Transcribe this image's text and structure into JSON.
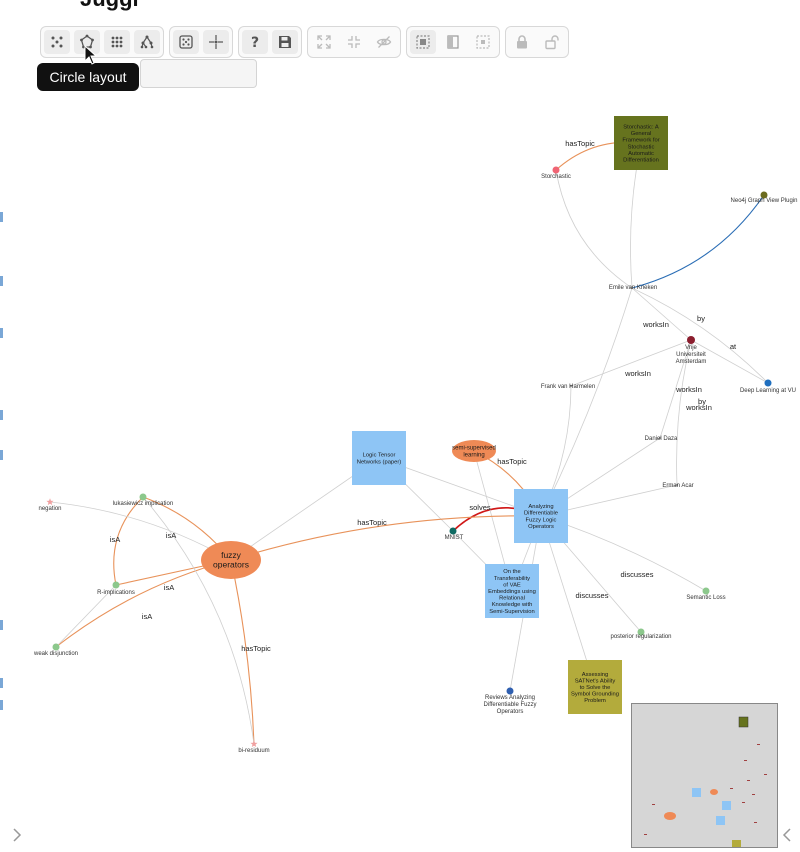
{
  "title": "Juggl",
  "toolbar": {
    "groups": [
      [
        "fdgd-layout-icon",
        "circle-layout-icon",
        "grid-layout-icon",
        "hierarchy-layout-icon"
      ],
      [
        "random-layout-icon",
        "fit-icon"
      ],
      [
        "help-icon",
        "save-icon"
      ],
      [
        "expand-icon",
        "collapse-icon",
        "hide-icon"
      ],
      [
        "select-all-icon",
        "invert-icon",
        "select-neighbors-icon"
      ],
      [
        "lock-icon",
        "unlock-icon"
      ]
    ],
    "tooltip": "Circle layout"
  },
  "graph": {
    "nodes": [
      {
        "id": "storchastic_paper",
        "label": "Storchastic: A General Framework for Stochastic Automatic Differentiation",
        "shape": "rect",
        "color": "#66731e",
        "size": 54
      },
      {
        "id": "storchastic",
        "label": "Storchastic",
        "shape": "dot",
        "color": "#f06474"
      },
      {
        "id": "neo4j",
        "label": "Neo4j Graph View Plugin",
        "shape": "dot",
        "color": "#6b6b1e"
      },
      {
        "id": "emile",
        "label": "Emile van Krieken",
        "shape": "tiny",
        "color": "#999999"
      },
      {
        "id": "vu",
        "label": "Vrije Universiteit Amsterdam",
        "shape": "dot",
        "color": "#8b1e2e"
      },
      {
        "id": "dlvu",
        "label": "Deep Learning at VU",
        "shape": "dot",
        "color": "#1f6fbf"
      },
      {
        "id": "frank",
        "label": "Frank van Harmelen",
        "shape": "tiny",
        "color": "#999999"
      },
      {
        "id": "daniel",
        "label": "Daniel Daza",
        "shape": "tiny",
        "color": "#999999"
      },
      {
        "id": "erman",
        "label": "Erman Acar",
        "shape": "tiny",
        "color": "#999999"
      },
      {
        "id": "ltn",
        "label": "Logic Tensor Networks (paper)",
        "shape": "rect",
        "color": "#8ec5f5",
        "size": 54
      },
      {
        "id": "semi",
        "label": "semi-supervised learning",
        "shape": "ellipse",
        "color": "#ef8a56"
      },
      {
        "id": "adflo",
        "label": "Analyzing Differentiable Fuzzy Logic Operators",
        "shape": "rect",
        "color": "#8ec5f5",
        "size": 54
      },
      {
        "id": "mnist",
        "label": "MNIST",
        "shape": "dot",
        "color": "#0f6b63"
      },
      {
        "id": "vae",
        "label": "On the Transferability of VAE Embeddings using Relational Knowledge with Semi-Supervision",
        "shape": "rect",
        "color": "#8ec5f5",
        "size": 54
      },
      {
        "id": "semloss",
        "label": "Semantic Loss",
        "shape": "dot",
        "color": "#8cc88c"
      },
      {
        "id": "postreg",
        "label": "posterior regularization",
        "shape": "dot",
        "color": "#8cc88c"
      },
      {
        "id": "satnet",
        "label": "Assessing SATNet's Ability to Solve the Symbol Grounding Problem",
        "shape": "rect",
        "color": "#b3ab3c",
        "size": 54
      },
      {
        "id": "reviews",
        "label": "Reviews Analyzing Differentiable Fuzzy Operators",
        "shape": "dot",
        "color": "#2f5fb0"
      },
      {
        "id": "fuzzy",
        "label": "fuzzy operators",
        "shape": "ellipse-big",
        "color": "#ef8a56"
      },
      {
        "id": "negation",
        "label": "negation",
        "shape": "star",
        "color": "#f0a0a0"
      },
      {
        "id": "lukasiewicz",
        "label": "lukasiewicz implication",
        "shape": "dot",
        "color": "#8cc88c"
      },
      {
        "id": "rimpl",
        "label": "R-implications",
        "shape": "dot",
        "color": "#8cc88c"
      },
      {
        "id": "weakdis",
        "label": "weak disjunction",
        "shape": "dot",
        "color": "#8cc88c"
      },
      {
        "id": "biresiduum",
        "label": "bi-residuum",
        "shape": "star",
        "color": "#f0a0a0"
      }
    ],
    "edge_labels": [
      {
        "id": "hastopic_storchastic",
        "text": "hasTopic"
      },
      {
        "id": "worksin_1",
        "text": "worksIn"
      },
      {
        "id": "by_1",
        "text": "by"
      },
      {
        "id": "at_1",
        "text": "at"
      },
      {
        "id": "worksin_2",
        "text": "worksIn"
      },
      {
        "id": "worksin_3",
        "text": "worksIn"
      },
      {
        "id": "by_2",
        "text": "by"
      },
      {
        "id": "worksin_4",
        "text": "worksIn"
      },
      {
        "id": "hastopic_semi",
        "text": "hasTopic"
      },
      {
        "id": "solves_1",
        "text": "solves"
      },
      {
        "id": "hastopic_fuzzy",
        "text": "hasTopic"
      },
      {
        "id": "discusses_1",
        "text": "discusses"
      },
      {
        "id": "discusses_2",
        "text": "discusses"
      },
      {
        "id": "isa_1",
        "text": "isA"
      },
      {
        "id": "isa_2",
        "text": "isA"
      },
      {
        "id": "isa_3",
        "text": "isA"
      },
      {
        "id": "isa_4",
        "text": "isA"
      },
      {
        "id": "hastopic_biresiduum",
        "text": "hasTopic"
      }
    ]
  },
  "colors": {
    "edge_default": "#cfcfcf",
    "edge_orange": "#e8925a",
    "edge_blue": "#2a6db5",
    "edge_red": "#d01818"
  }
}
